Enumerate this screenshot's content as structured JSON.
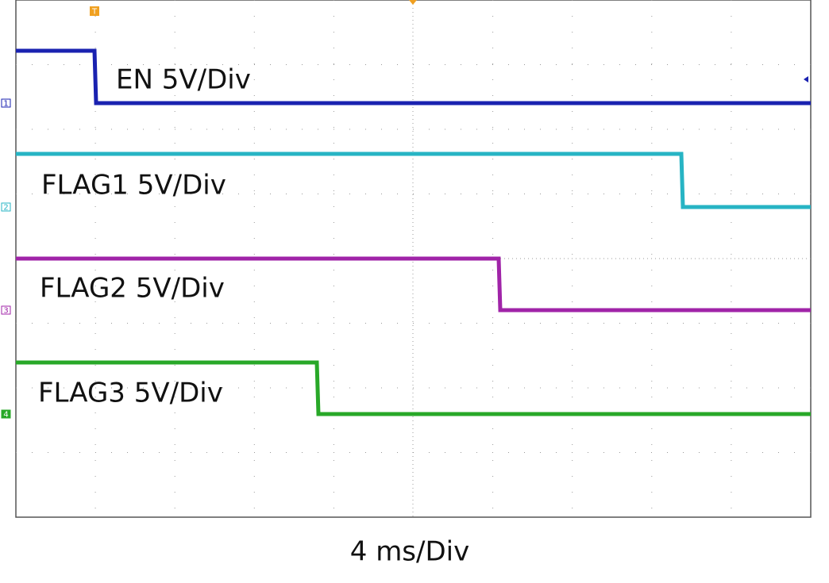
{
  "traces": [
    {
      "label": "EN 5V/Div",
      "marker": "1"
    },
    {
      "label": "FLAG1 5V/Div",
      "marker": "2"
    },
    {
      "label": "FLAG2 5V/Div",
      "marker": "3"
    },
    {
      "label": "FLAG3 5V/Div",
      "marker": "4"
    }
  ],
  "trigger_marker": "T",
  "time_scale": "4 ms/Div"
}
